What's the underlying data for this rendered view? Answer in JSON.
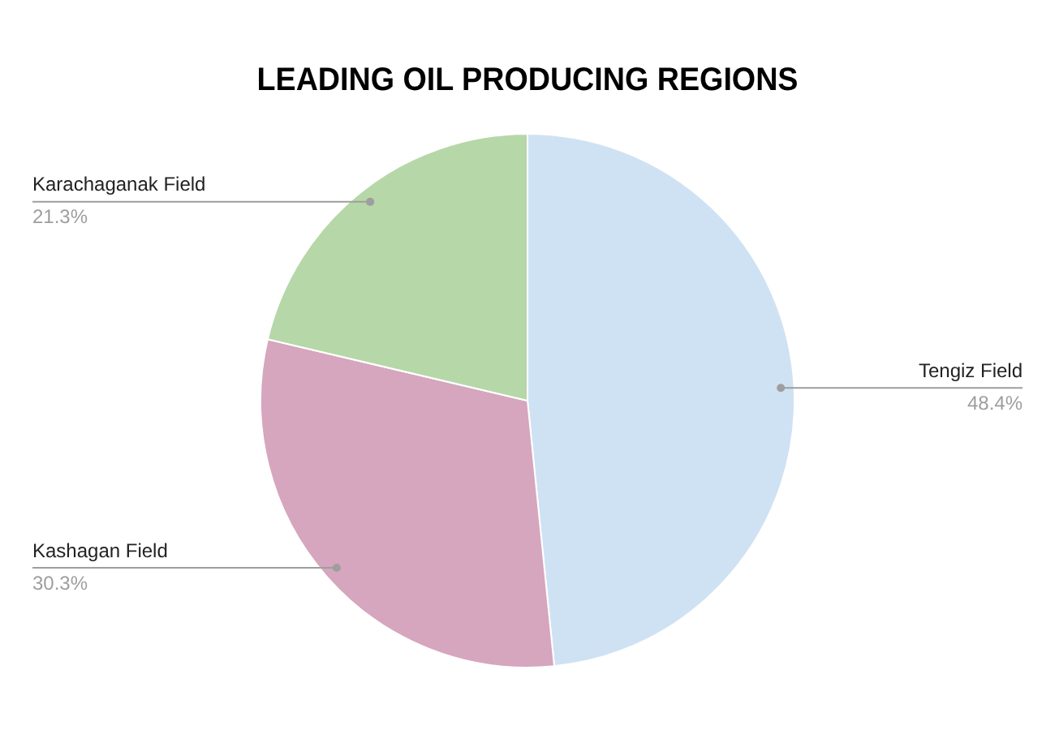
{
  "chart_data": {
    "type": "pie",
    "title": "LEADING OIL PRODUCING REGIONS",
    "categories": [
      "Tengiz Field",
      "Kashagan Field",
      "Karachaganak Field"
    ],
    "values": [
      48.4,
      30.3,
      21.3
    ],
    "colors": [
      "#cfe2f3",
      "#d5a6bd",
      "#b6d7a8"
    ],
    "value_labels": [
      "48.4%",
      "30.3%",
      "21.3%"
    ],
    "legend": false
  }
}
